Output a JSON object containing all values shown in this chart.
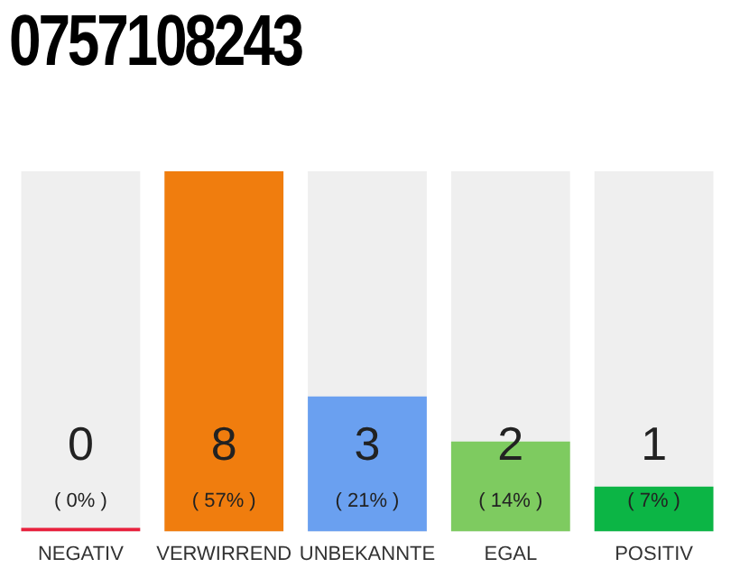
{
  "chart_data": {
    "type": "bar",
    "title": "0757108243",
    "categories": [
      "NEGATIV",
      "VERWIRREND",
      "UNBEKANNTE",
      "EGAL",
      "POSITIV"
    ],
    "values": [
      0,
      8,
      3,
      2,
      1
    ],
    "colors": [
      "#e8203c",
      "#f07d0e",
      "#6aa0f0",
      "#7ecb60",
      "#0cb545"
    ],
    "value_labels": [
      "0",
      "8",
      "3",
      "2",
      "1"
    ],
    "annotations": [
      "( 0% )",
      "( 57% )",
      "( 21% )",
      "( 14% )",
      "( 7% )"
    ],
    "tick_labels": "x",
    "grid": false,
    "legend": false
  }
}
